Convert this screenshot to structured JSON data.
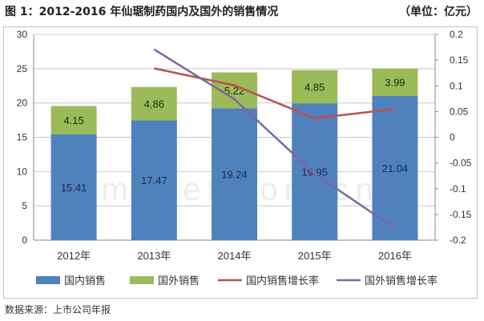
{
  "header": {
    "title": "图 1：2012-2016 年仙琚制药国内及国外的销售情况",
    "unit": "（单位：亿元）"
  },
  "source": "数据来源：上市公司年报",
  "colors": {
    "domestic": "#4f81bd",
    "foreign": "#9bbb59",
    "domestic_growth": "#c0504d",
    "foreign_growth": "#8064a2"
  },
  "chart_data": {
    "type": "bar",
    "stacked": true,
    "categories": [
      "2012年",
      "2013年",
      "2014年",
      "2015年",
      "2016年"
    ],
    "series": [
      {
        "name": "国内销售",
        "type": "bar",
        "axis": "left",
        "values": [
          15.41,
          17.47,
          19.24,
          19.95,
          21.04
        ],
        "labels": [
          "15.41",
          "17.47",
          "19.24",
          "19.95",
          "21.04"
        ]
      },
      {
        "name": "国外销售",
        "type": "bar",
        "axis": "left",
        "values": [
          4.15,
          4.86,
          5.22,
          4.85,
          3.99
        ],
        "labels": [
          "4.15",
          "4.86",
          "5.22",
          "4.85",
          "3.99"
        ]
      },
      {
        "name": "国内销售增长率",
        "type": "line",
        "axis": "right",
        "values": [
          null,
          0.134,
          0.101,
          0.037,
          0.055
        ]
      },
      {
        "name": "国外销售增长率",
        "type": "line",
        "axis": "right",
        "values": [
          null,
          0.171,
          0.074,
          -0.071,
          -0.177
        ]
      }
    ],
    "ylim": [
      0,
      30
    ],
    "yticks": [
      "0",
      "5",
      "10",
      "15",
      "20",
      "25",
      "30"
    ],
    "y2lim": [
      -0.2,
      0.2
    ],
    "y2ticks": [
      "-0.2",
      "-0.15",
      "-0.1",
      "-0.05",
      "0",
      "0.05",
      "0.1",
      "0.15",
      "0.2"
    ],
    "grid": true,
    "legend": "bottom"
  }
}
